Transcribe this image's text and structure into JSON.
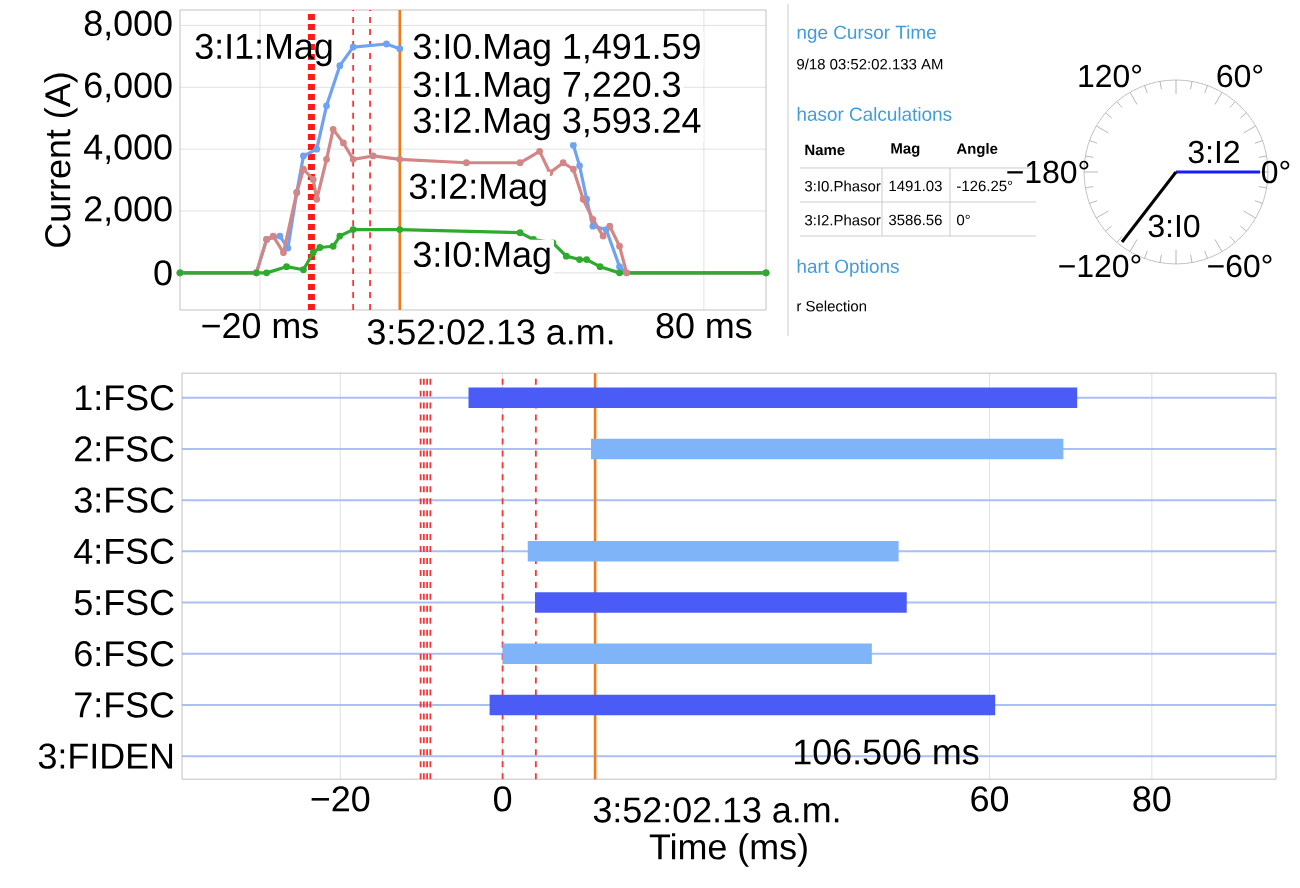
{
  "chart_data": [
    {
      "type": "line",
      "ylabel": "Current (A)",
      "xlim": [
        -38,
        94
      ],
      "ylim": [
        -1200,
        8500
      ],
      "xticks": [
        {
          "value": -20,
          "label": "−20 ms"
        },
        {
          "value": 80,
          "label": "80 ms"
        }
      ],
      "yticks": [
        {
          "value": 0,
          "label": "0"
        },
        {
          "value": 2000,
          "label": "2,000"
        },
        {
          "value": 4000,
          "label": "4,000"
        },
        {
          "value": 6000,
          "label": "6,000"
        },
        {
          "value": 8000,
          "label": "8,000"
        }
      ],
      "grid": true,
      "marker": "circle",
      "series": [
        {
          "color": "#6fa3f2",
          "x": [
            -38,
            -20.8,
            -18.5,
            -15.5,
            -13.7,
            -11.7,
            -10.2,
            -7.2,
            -5,
            -2,
            1,
            8.5,
            11.5,
            30,
            50.6,
            52,
            53.6,
            55,
            58,
            61,
            62.6,
            94
          ],
          "values": [
            0,
            0,
            1080,
            1190,
            800,
            2600,
            3780,
            4000,
            5400,
            6700,
            7300,
            7400,
            7250,
            null,
            4130,
            3460,
            2380,
            1510,
            1400,
            200,
            0,
            0
          ]
        },
        {
          "color": "#d38686",
          "x": [
            -38,
            -20.8,
            -18.5,
            -17,
            -14.7,
            -11.7,
            -10.2,
            -8,
            -7.2,
            -5,
            -3.5,
            -1.2,
            1,
            5.5,
            11.5,
            26.5,
            38.6,
            43,
            45.3,
            48.3,
            50.6,
            52.8,
            55,
            57.3,
            58.8,
            61,
            62.6,
            94
          ],
          "values": [
            0,
            0,
            1080,
            1190,
            650,
            2600,
            3350,
            3020,
            2380,
            3670,
            4640,
            4200,
            3670,
            3780,
            3670,
            3560,
            3560,
            3930,
            3240,
            3560,
            3350,
            2380,
            1730,
            1190,
            1510,
            860,
            0,
            0
          ]
        },
        {
          "color": "#2eaa2e",
          "x": [
            -38,
            -20.8,
            -18.5,
            -14,
            -10.2,
            -8,
            -6.5,
            -3.5,
            -2,
            1,
            11.5,
            38.6,
            41.6,
            46,
            49,
            52,
            53.6,
            56.6,
            61,
            94
          ],
          "values": [
            0,
            0,
            0,
            200,
            100,
            650,
            820,
            860,
            1190,
            1400,
            1400,
            1300,
            1080,
            970,
            540,
            430,
            430,
            200,
            0,
            0
          ]
        }
      ],
      "ref_lines": [
        {
          "axis": "x",
          "value": -8.4,
          "color": "#ff1a1a",
          "line_style": "dotted"
        },
        {
          "axis": "x",
          "value": 1,
          "color": "#ff3333",
          "line_style": "dashed"
        },
        {
          "axis": "x",
          "value": 4.8,
          "color": "#ff3333",
          "line_style": "dashed"
        },
        {
          "axis": "x",
          "value": 11.5,
          "color": "#ee7a1a",
          "line_style": "solid"
        }
      ],
      "annotations": [
        "3:I1:Mag",
        "3:I0.Mag 1,491.59",
        "3:I1.Mag 7,220.3",
        "3:I2.Mag 3,593.24",
        "3:I2:Mag",
        "3:I0:Mag",
        "3:52:02.13 a.m."
      ]
    },
    {
      "type": "other",
      "annotations": [
        "nge Cursor Time",
        "9/18 03:52:02.133 AM",
        "hasor Calculations",
        "Name",
        "Mag",
        "Angle",
        "3:I0.Phasor",
        "1491.03",
        "-126.25°",
        "3:I2.Phasor",
        "3586.56",
        "0°",
        "hart Options",
        "r Selection"
      ]
    },
    {
      "type": "other",
      "annotations": [
        "120°",
        "60°",
        "−180°",
        "0°",
        "−120°",
        "−60°",
        "3:I2",
        "3:I0"
      ]
    },
    {
      "type": "bar",
      "orientation": "horizontal",
      "xlabel": "Time (ms)",
      "categories": [
        "1:FSC",
        "2:FSC",
        "3:FSC",
        "4:FSC",
        "5:FSC",
        "6:FSC",
        "7:FSC",
        "3:FIDEN"
      ],
      "base": [
        -4.2,
        10.9,
        null,
        3.1,
        4,
        0,
        -1.6,
        null
      ],
      "values": [
        75,
        58.2,
        null,
        45.7,
        45.8,
        45.5,
        62.3,
        null
      ],
      "colors": [
        "#4a5cf5",
        "#80b4f8",
        "#4a5cf5",
        "#80b4f8",
        "#4a5cf5",
        "#80b4f8",
        "#4a5cf5",
        "#80b4f8"
      ],
      "xlim": [
        -39.5,
        95.3
      ],
      "xticks": [
        {
          "value": -20,
          "label": "−20"
        },
        {
          "value": 0,
          "label": "0"
        },
        {
          "value": 60,
          "label": "60"
        },
        {
          "value": 80,
          "label": "80"
        }
      ],
      "grid": true,
      "ref_lines": [
        {
          "axis": "x",
          "value": -10.1,
          "color": "#ff3333",
          "line_style": "dashed"
        },
        {
          "axis": "x",
          "value": -9.7,
          "color": "#ff3333",
          "line_style": "dashed"
        },
        {
          "axis": "x",
          "value": -9.3,
          "color": "#ff3333",
          "line_style": "dashed"
        },
        {
          "axis": "x",
          "value": -8.9,
          "color": "#ff3333",
          "line_style": "dashed"
        },
        {
          "axis": "x",
          "value": 0,
          "color": "#ff3333",
          "line_style": "dashed"
        },
        {
          "axis": "x",
          "value": 4.1,
          "color": "#ff3333",
          "line_style": "dashed"
        },
        {
          "axis": "x",
          "value": 11.4,
          "color": "#ee7a1a",
          "line_style": "solid"
        }
      ],
      "annotations": [
        "3:52:02.13 a.m.",
        "106.506 ms"
      ]
    }
  ]
}
